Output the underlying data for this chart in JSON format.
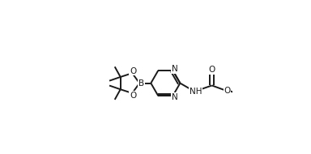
{
  "background": "#ffffff",
  "line_color": "#1a1a1a",
  "line_width": 1.4,
  "font_size": 7.5,
  "figsize": [
    3.84,
    1.9
  ],
  "dpi": 100,
  "xlim": [
    0.0,
    1.0
  ],
  "ylim": [
    0.0,
    1.0
  ]
}
